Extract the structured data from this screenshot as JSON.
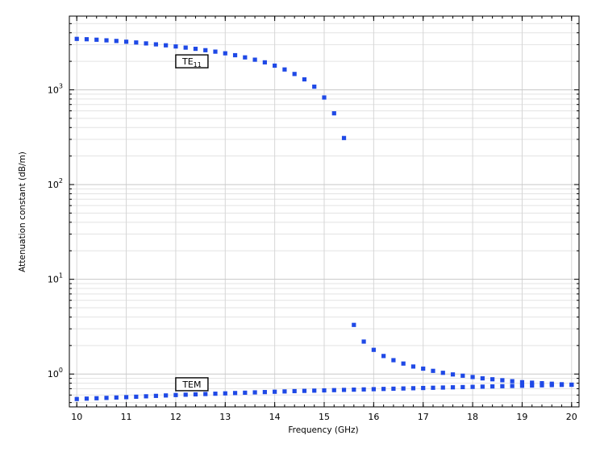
{
  "chart_data": {
    "type": "scatter",
    "xlabel": "Frequency (GHz)",
    "ylabel": "Attenuation constant (dB/m)",
    "x_scale": "linear",
    "y_scale": "log",
    "xlim": [
      9.85,
      20.15
    ],
    "ylim": [
      0.45,
      6000
    ],
    "x_ticks": [
      10,
      11,
      12,
      13,
      14,
      15,
      16,
      17,
      18,
      19,
      20
    ],
    "y_ticks": [
      {
        "value": 1,
        "base": "10",
        "exp": "0"
      },
      {
        "value": 10,
        "base": "10",
        "exp": "1"
      },
      {
        "value": 100,
        "base": "10",
        "exp": "2"
      },
      {
        "value": 1000,
        "base": "10",
        "exp": "3"
      }
    ],
    "grid": true,
    "marker_color": "#1f49e6",
    "series": [
      {
        "name": "TE11",
        "label_main": "TE",
        "label_sub": "11",
        "x": [
          10,
          10.2,
          10.4,
          10.6,
          10.8,
          11,
          11.2,
          11.4,
          11.6,
          11.8,
          12,
          12.2,
          12.4,
          12.6,
          12.8,
          13,
          13.2,
          13.4,
          13.6,
          13.8,
          14,
          14.2,
          14.4,
          14.6,
          14.8,
          15,
          15.2,
          15.4,
          15.6,
          15.8,
          16,
          16.2,
          16.4,
          16.6,
          16.8,
          17,
          17.2,
          17.4,
          17.6,
          17.8,
          18,
          18.2,
          18.4,
          18.6,
          18.8,
          19,
          19.2,
          19.4,
          19.6,
          19.8,
          20
        ],
        "y": [
          3450,
          3420,
          3380,
          3330,
          3280,
          3220,
          3160,
          3090,
          3020,
          2950,
          2870,
          2790,
          2710,
          2620,
          2530,
          2430,
          2320,
          2200,
          2080,
          1950,
          1800,
          1640,
          1470,
          1290,
          1080,
          830,
          565,
          310,
          3.3,
          2.2,
          1.8,
          1.55,
          1.4,
          1.29,
          1.2,
          1.14,
          1.08,
          1.03,
          0.99,
          0.96,
          0.93,
          0.9,
          0.88,
          0.86,
          0.84,
          0.82,
          0.81,
          0.8,
          0.79,
          0.78,
          0.77
        ]
      },
      {
        "name": "TEM",
        "label_main": "TEM",
        "label_sub": "",
        "x": [
          10,
          10.2,
          10.4,
          10.6,
          10.8,
          11,
          11.2,
          11.4,
          11.6,
          11.8,
          12,
          12.2,
          12.4,
          12.6,
          12.8,
          13,
          13.2,
          13.4,
          13.6,
          13.8,
          14,
          14.2,
          14.4,
          14.6,
          14.8,
          15,
          15.2,
          15.4,
          15.6,
          15.8,
          16,
          16.2,
          16.4,
          16.6,
          16.8,
          17,
          17.2,
          17.4,
          17.6,
          17.8,
          18,
          18.2,
          18.4,
          18.6,
          18.8,
          19,
          19.2,
          19.4,
          19.6,
          19.8,
          20
        ],
        "y": [
          0.545,
          0.55,
          0.555,
          0.56,
          0.565,
          0.57,
          0.576,
          0.582,
          0.588,
          0.594,
          0.6,
          0.605,
          0.61,
          0.615,
          0.62,
          0.625,
          0.63,
          0.635,
          0.64,
          0.645,
          0.65,
          0.655,
          0.66,
          0.664,
          0.668,
          0.672,
          0.676,
          0.68,
          0.684,
          0.688,
          0.692,
          0.696,
          0.7,
          0.704,
          0.708,
          0.712,
          0.716,
          0.72,
          0.724,
          0.728,
          0.732,
          0.736,
          0.74,
          0.744,
          0.748,
          0.752,
          0.756,
          0.76,
          0.764,
          0.768,
          0.772
        ]
      }
    ]
  }
}
